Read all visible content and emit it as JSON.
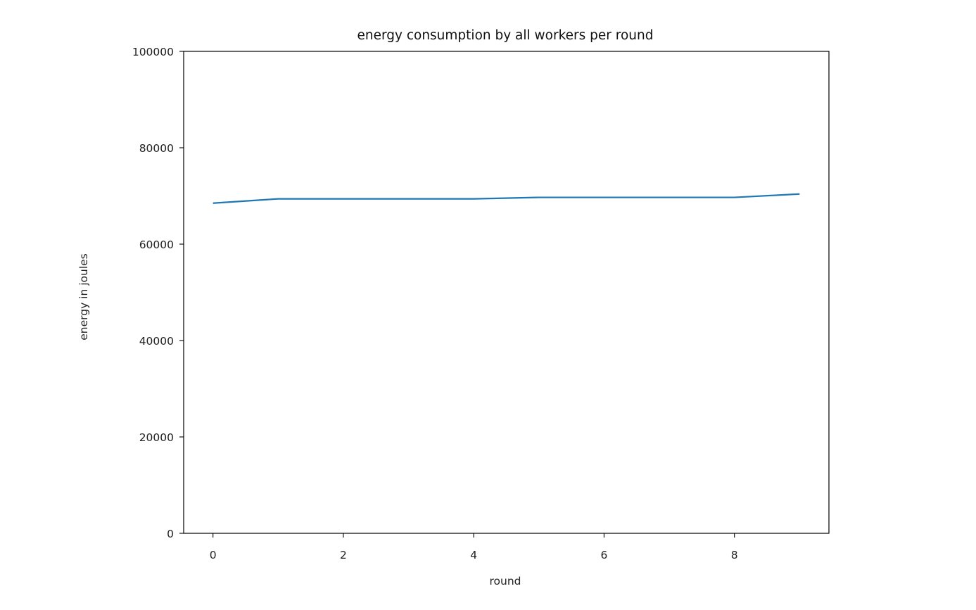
{
  "chart_data": {
    "type": "line",
    "title": "energy consumption by all workers per round",
    "xlabel": "round",
    "ylabel": "energy in joules",
    "x": [
      0,
      1,
      2,
      3,
      4,
      5,
      6,
      7,
      8,
      9
    ],
    "series": [
      {
        "values": [
          68500,
          69400,
          69400,
          69400,
          69400,
          69700,
          69700,
          69700,
          69700,
          70400
        ],
        "color": "#1f77b4"
      }
    ],
    "xlim": [
      -0.45,
      9.45
    ],
    "ylim": [
      0,
      100000
    ],
    "xticks": [
      0,
      2,
      4,
      6,
      8
    ],
    "xtick_labels": [
      "0",
      "2",
      "4",
      "6",
      "8"
    ],
    "yticks": [
      0,
      20000,
      40000,
      60000,
      80000,
      100000
    ],
    "ytick_labels": [
      "0",
      "20000",
      "40000",
      "60000",
      "80000",
      "100000"
    ],
    "grid": false,
    "legend": "none"
  }
}
